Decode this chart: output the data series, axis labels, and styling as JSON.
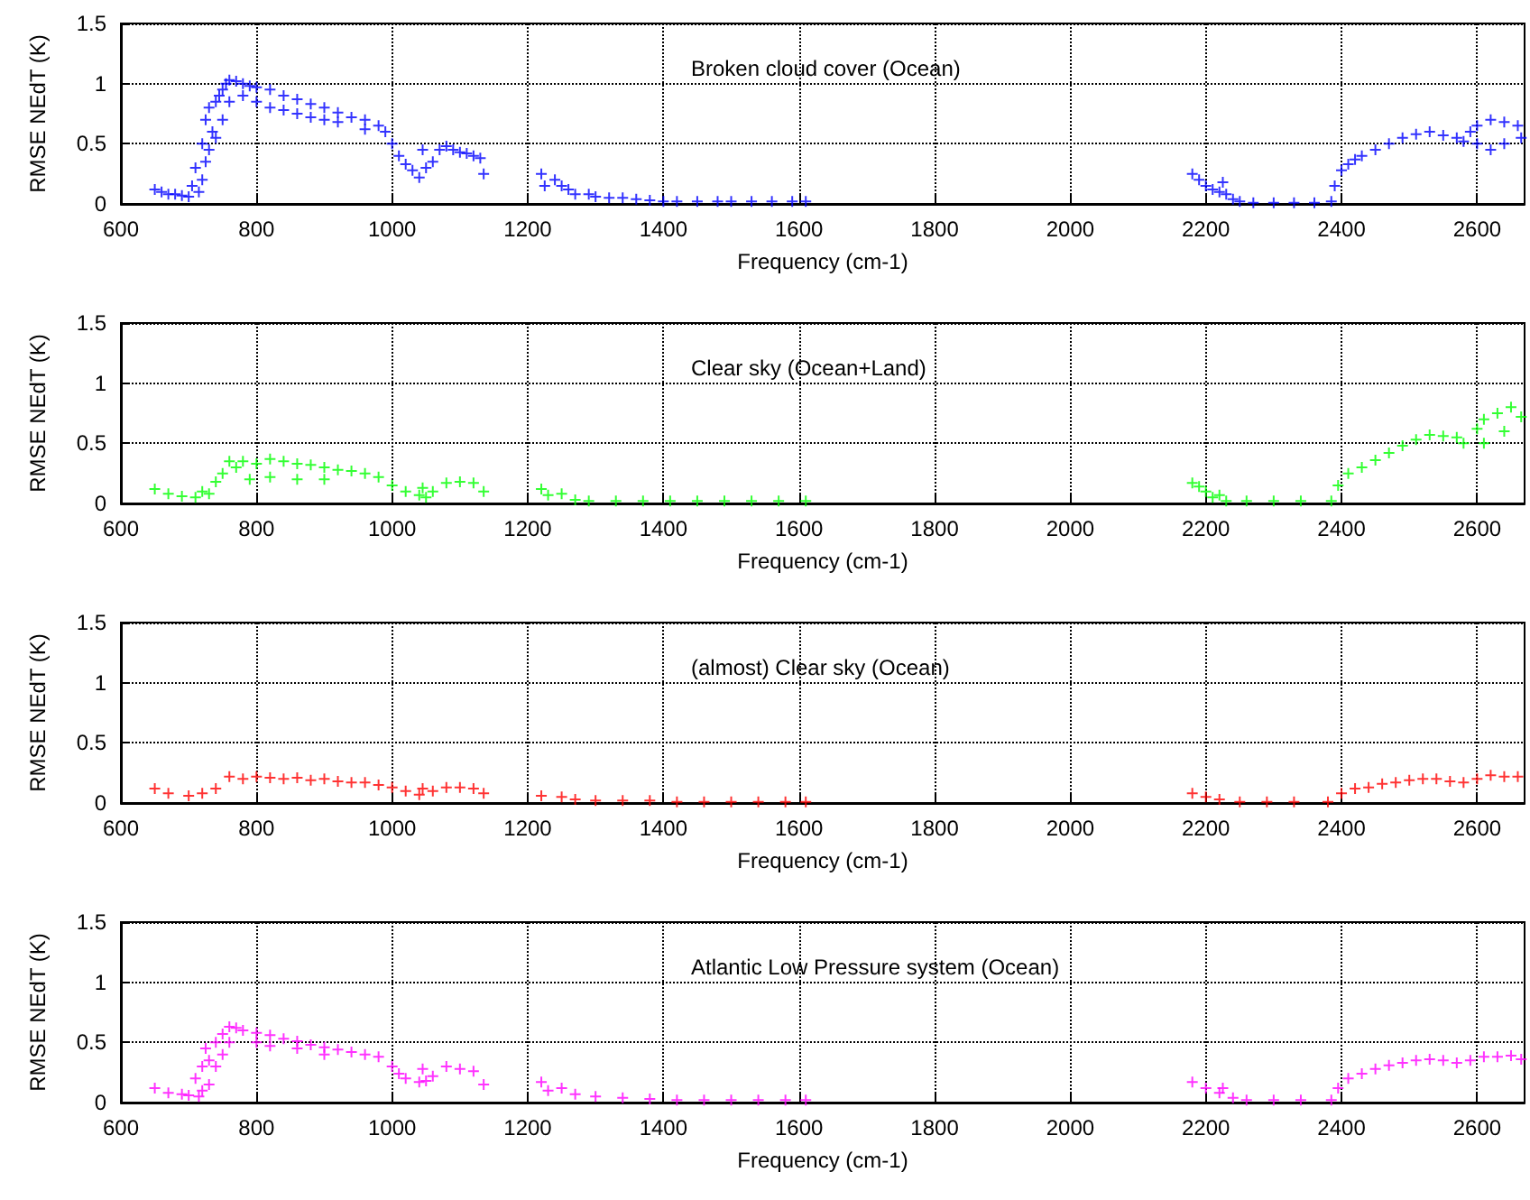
{
  "chart_data": [
    {
      "type": "scatter",
      "xlabel": "Frequency (cm-1)",
      "ylabel": "RMSE NEdT (K)",
      "annotations": [
        "Broken cloud cover (Ocean)"
      ],
      "xlim": [
        600,
        2670
      ],
      "xticks": [
        600,
        800,
        1000,
        1200,
        1400,
        1600,
        1800,
        2000,
        2200,
        2400,
        2600
      ],
      "ylim": [
        0,
        1.5
      ],
      "yticks": [
        0,
        0.5,
        1,
        1.5
      ],
      "grid": true,
      "marker": "cross",
      "series": [
        {
          "color": "#0000ff",
          "x": [
            650,
            660,
            670,
            680,
            690,
            700,
            705,
            710,
            715,
            720,
            720,
            725,
            725,
            730,
            730,
            735,
            740,
            740,
            745,
            750,
            750,
            755,
            760,
            760,
            770,
            780,
            780,
            790,
            800,
            800,
            820,
            820,
            840,
            840,
            860,
            860,
            880,
            880,
            900,
            900,
            920,
            920,
            940,
            960,
            960,
            980,
            990,
            1000,
            1010,
            1020,
            1030,
            1040,
            1045,
            1050,
            1060,
            1070,
            1080,
            1090,
            1100,
            1110,
            1120,
            1130,
            1135,
            1220,
            1225,
            1240,
            1250,
            1260,
            1270,
            1290,
            1300,
            1320,
            1340,
            1360,
            1380,
            1400,
            1420,
            1450,
            1480,
            1500,
            1530,
            1560,
            1590,
            1610,
            2180,
            2190,
            2200,
            2210,
            2220,
            2225,
            2230,
            2240,
            2250,
            2270,
            2300,
            2330,
            2360,
            2385,
            2390,
            2400,
            2410,
            2420,
            2430,
            2450,
            2470,
            2490,
            2510,
            2530,
            2550,
            2570,
            2580,
            2590,
            2600,
            2600,
            2620,
            2620,
            2640,
            2640,
            2660,
            2665
          ],
          "values": [
            0.12,
            0.1,
            0.08,
            0.08,
            0.07,
            0.06,
            0.15,
            0.3,
            0.1,
            0.5,
            0.2,
            0.7,
            0.35,
            0.8,
            0.45,
            0.6,
            0.85,
            0.55,
            0.9,
            0.95,
            0.7,
            1.0,
            1.03,
            0.85,
            1.02,
            1.0,
            0.9,
            0.98,
            0.97,
            0.85,
            0.95,
            0.8,
            0.9,
            0.78,
            0.87,
            0.75,
            0.83,
            0.72,
            0.8,
            0.7,
            0.76,
            0.68,
            0.72,
            0.7,
            0.62,
            0.65,
            0.6,
            0.5,
            0.4,
            0.33,
            0.28,
            0.22,
            0.45,
            0.3,
            0.35,
            0.45,
            0.48,
            0.45,
            0.43,
            0.42,
            0.4,
            0.38,
            0.25,
            0.25,
            0.15,
            0.2,
            0.15,
            0.12,
            0.08,
            0.08,
            0.06,
            0.05,
            0.05,
            0.04,
            0.03,
            0.02,
            0.02,
            0.02,
            0.02,
            0.02,
            0.02,
            0.02,
            0.02,
            0.02,
            0.25,
            0.2,
            0.15,
            0.12,
            0.1,
            0.18,
            0.08,
            0.04,
            0.02,
            0.01,
            0.01,
            0.01,
            0.01,
            0.02,
            0.15,
            0.28,
            0.33,
            0.37,
            0.4,
            0.45,
            0.5,
            0.55,
            0.58,
            0.6,
            0.57,
            0.55,
            0.52,
            0.6,
            0.65,
            0.5,
            0.7,
            0.45,
            0.68,
            0.5,
            0.65,
            0.55
          ]
        }
      ]
    },
    {
      "type": "scatter",
      "xlabel": "Frequency (cm-1)",
      "ylabel": "RMSE NEdT (K)",
      "annotations": [
        "Clear sky (Ocean+Land)"
      ],
      "xlim": [
        600,
        2670
      ],
      "xticks": [
        600,
        800,
        1000,
        1200,
        1400,
        1600,
        1800,
        2000,
        2200,
        2400,
        2600
      ],
      "ylim": [
        0,
        1.5
      ],
      "yticks": [
        0,
        0.5,
        1,
        1.5
      ],
      "grid": true,
      "marker": "cross",
      "series": [
        {
          "color": "#00ff00",
          "x": [
            650,
            670,
            690,
            710,
            720,
            730,
            740,
            750,
            760,
            770,
            780,
            790,
            800,
            820,
            820,
            840,
            860,
            860,
            880,
            900,
            900,
            920,
            940,
            960,
            980,
            1000,
            1020,
            1040,
            1045,
            1050,
            1060,
            1080,
            1100,
            1120,
            1135,
            1220,
            1230,
            1250,
            1270,
            1290,
            1330,
            1370,
            1410,
            1450,
            1490,
            1530,
            1570,
            1610,
            2180,
            2190,
            2200,
            2210,
            2220,
            2230,
            2260,
            2300,
            2340,
            2385,
            2395,
            2410,
            2430,
            2450,
            2470,
            2490,
            2510,
            2530,
            2550,
            2570,
            2580,
            2600,
            2610,
            2610,
            2630,
            2640,
            2650,
            2665
          ],
          "values": [
            0.12,
            0.08,
            0.06,
            0.05,
            0.1,
            0.08,
            0.18,
            0.25,
            0.35,
            0.3,
            0.35,
            0.2,
            0.33,
            0.37,
            0.22,
            0.35,
            0.33,
            0.2,
            0.32,
            0.3,
            0.2,
            0.28,
            0.27,
            0.25,
            0.22,
            0.15,
            0.1,
            0.07,
            0.13,
            0.05,
            0.1,
            0.17,
            0.18,
            0.17,
            0.1,
            0.12,
            0.07,
            0.08,
            0.03,
            0.02,
            0.02,
            0.02,
            0.02,
            0.02,
            0.02,
            0.02,
            0.02,
            0.02,
            0.17,
            0.14,
            0.1,
            0.05,
            0.07,
            0.02,
            0.02,
            0.02,
            0.02,
            0.02,
            0.15,
            0.25,
            0.3,
            0.36,
            0.42,
            0.48,
            0.53,
            0.57,
            0.56,
            0.55,
            0.5,
            0.62,
            0.7,
            0.5,
            0.75,
            0.6,
            0.8,
            0.72
          ]
        }
      ]
    },
    {
      "type": "scatter",
      "xlabel": "Frequency (cm-1)",
      "ylabel": "RMSE NEdT (K)",
      "annotations": [
        "(almost) Clear sky (Ocean)"
      ],
      "xlim": [
        600,
        2670
      ],
      "xticks": [
        600,
        800,
        1000,
        1200,
        1400,
        1600,
        1800,
        2000,
        2200,
        2400,
        2600
      ],
      "ylim": [
        0,
        1.5
      ],
      "yticks": [
        0,
        0.5,
        1,
        1.5
      ],
      "grid": true,
      "marker": "cross",
      "series": [
        {
          "color": "#ff0000",
          "x": [
            650,
            670,
            700,
            720,
            740,
            760,
            780,
            800,
            820,
            840,
            860,
            880,
            900,
            920,
            940,
            960,
            980,
            1000,
            1020,
            1040,
            1045,
            1060,
            1080,
            1100,
            1120,
            1135,
            1220,
            1250,
            1270,
            1300,
            1340,
            1380,
            1420,
            1460,
            1500,
            1540,
            1580,
            1610,
            2180,
            2200,
            2220,
            2250,
            2290,
            2330,
            2380,
            2400,
            2420,
            2440,
            2460,
            2480,
            2500,
            2520,
            2540,
            2560,
            2580,
            2600,
            2620,
            2640,
            2660
          ],
          "values": [
            0.12,
            0.08,
            0.06,
            0.08,
            0.12,
            0.22,
            0.2,
            0.22,
            0.21,
            0.2,
            0.21,
            0.19,
            0.2,
            0.18,
            0.17,
            0.17,
            0.15,
            0.13,
            0.1,
            0.07,
            0.12,
            0.1,
            0.13,
            0.13,
            0.12,
            0.08,
            0.06,
            0.05,
            0.03,
            0.02,
            0.02,
            0.02,
            0.01,
            0.01,
            0.01,
            0.01,
            0.01,
            0.01,
            0.08,
            0.05,
            0.03,
            0.01,
            0.01,
            0.01,
            0.01,
            0.08,
            0.12,
            0.13,
            0.16,
            0.17,
            0.19,
            0.2,
            0.2,
            0.18,
            0.17,
            0.2,
            0.23,
            0.22,
            0.22
          ]
        }
      ]
    },
    {
      "type": "scatter",
      "xlabel": "Frequency (cm-1)",
      "ylabel": "RMSE NEdT (K)",
      "annotations": [
        "Atlantic Low Pressure system (Ocean)"
      ],
      "xlim": [
        600,
        2670
      ],
      "xticks": [
        600,
        800,
        1000,
        1200,
        1400,
        1600,
        1800,
        2000,
        2200,
        2400,
        2600
      ],
      "ylim": [
        0,
        1.5
      ],
      "yticks": [
        0,
        0.5,
        1,
        1.5
      ],
      "grid": true,
      "marker": "cross",
      "series": [
        {
          "color": "#ff00ff",
          "x": [
            650,
            670,
            690,
            700,
            710,
            715,
            720,
            720,
            725,
            730,
            730,
            740,
            740,
            750,
            750,
            760,
            760,
            770,
            780,
            800,
            800,
            820,
            820,
            840,
            860,
            860,
            880,
            900,
            900,
            920,
            940,
            960,
            980,
            1000,
            1010,
            1020,
            1040,
            1045,
            1050,
            1060,
            1080,
            1100,
            1120,
            1135,
            1220,
            1230,
            1250,
            1270,
            1300,
            1340,
            1380,
            1420,
            1460,
            1500,
            1540,
            1580,
            1610,
            2180,
            2200,
            2220,
            2225,
            2240,
            2260,
            2300,
            2340,
            2385,
            2395,
            2410,
            2430,
            2450,
            2470,
            2490,
            2510,
            2530,
            2550,
            2570,
            2590,
            2610,
            2630,
            2650,
            2665
          ],
          "values": [
            0.12,
            0.08,
            0.07,
            0.06,
            0.2,
            0.05,
            0.3,
            0.1,
            0.45,
            0.35,
            0.15,
            0.5,
            0.3,
            0.57,
            0.4,
            0.63,
            0.5,
            0.62,
            0.6,
            0.58,
            0.5,
            0.56,
            0.47,
            0.53,
            0.51,
            0.45,
            0.48,
            0.46,
            0.4,
            0.44,
            0.42,
            0.4,
            0.38,
            0.3,
            0.24,
            0.2,
            0.17,
            0.28,
            0.18,
            0.22,
            0.3,
            0.28,
            0.26,
            0.15,
            0.17,
            0.1,
            0.12,
            0.07,
            0.05,
            0.04,
            0.03,
            0.02,
            0.02,
            0.02,
            0.02,
            0.02,
            0.02,
            0.17,
            0.12,
            0.08,
            0.12,
            0.04,
            0.02,
            0.02,
            0.02,
            0.02,
            0.12,
            0.2,
            0.24,
            0.28,
            0.31,
            0.33,
            0.35,
            0.36,
            0.35,
            0.33,
            0.35,
            0.38,
            0.38,
            0.39,
            0.36
          ]
        }
      ]
    }
  ]
}
